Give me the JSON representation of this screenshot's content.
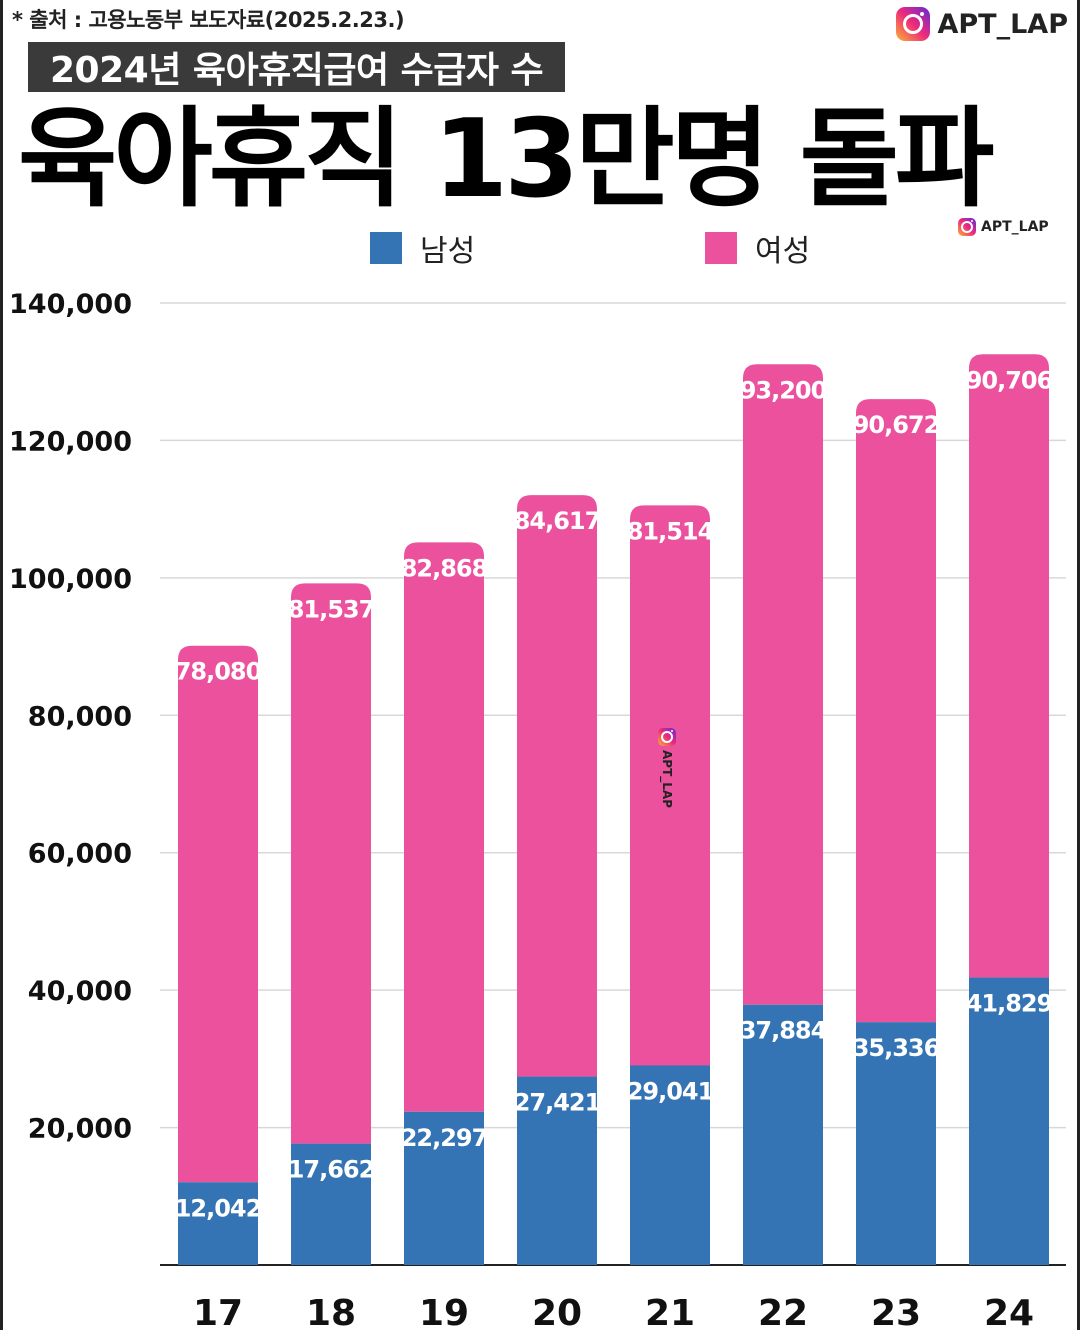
{
  "header": {
    "source": "* 출처 : 고용노동부 보도자료(2025.2.23.)",
    "brand": "APT_LAP",
    "subtitle": "2024년 육아휴직급여 수급자 수",
    "title": "육아휴직 13만명 돌파"
  },
  "watermarks": {
    "small_brand": "APT_LAP",
    "center_brand": "APT_LAP"
  },
  "colors": {
    "male": "#3474b4",
    "female": "#eb519d",
    "grid": "#d8d8d8",
    "axis": "#222222"
  },
  "chart_data": {
    "type": "bar",
    "stacked": true,
    "categories": [
      "17",
      "18",
      "19",
      "20",
      "21",
      "22",
      "23",
      "24"
    ],
    "series": [
      {
        "name": "남성",
        "values": [
          12042,
          17662,
          22297,
          27421,
          29041,
          37884,
          35336,
          41829
        ],
        "labels": [
          "12,042",
          "17,662",
          "22,297",
          "27,421",
          "29,041",
          "37,884",
          "35,336",
          "41,829"
        ]
      },
      {
        "name": "여성",
        "values": [
          78080,
          81537,
          82868,
          84617,
          81514,
          93200,
          90672,
          90706
        ],
        "labels": [
          "78,080",
          "81,537",
          "82,868",
          "84,617",
          "81,514",
          "93,200",
          "90,672",
          "90,706"
        ]
      }
    ],
    "ylim": [
      0,
      140000
    ],
    "yticks": [
      20000,
      40000,
      60000,
      80000,
      100000,
      120000,
      140000
    ],
    "ytick_labels": [
      "20,000",
      "40,000",
      "60,000",
      "80,000",
      "100,000",
      "120,000",
      "140,000"
    ],
    "grid": true,
    "legend_position": "top"
  }
}
